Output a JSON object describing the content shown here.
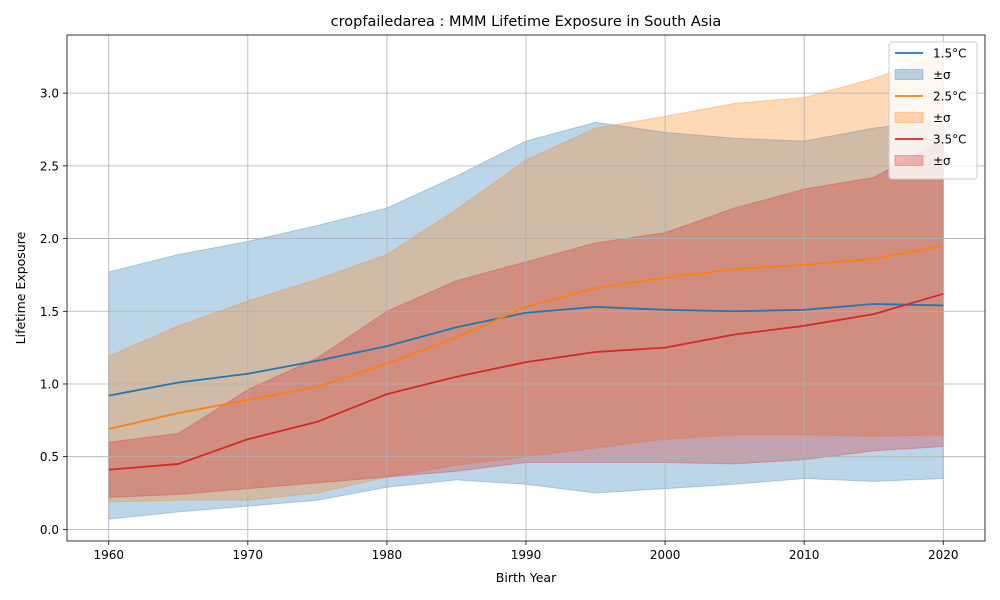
{
  "chart_data": {
    "type": "area",
    "title": "cropfailedarea : MMM Lifetime Exposure in South Asia",
    "xlabel": "Birth Year",
    "ylabel": "Lifetime Exposure",
    "xlim": [
      1957,
      2023
    ],
    "ylim": [
      -0.08,
      3.4
    ],
    "xticks": [
      1960,
      1970,
      1980,
      1990,
      2000,
      2010,
      2020
    ],
    "xtick_labels": [
      "1960",
      "1970",
      "1980",
      "1990",
      "2000",
      "2010",
      "2020"
    ],
    "yticks": [
      0.0,
      0.5,
      1.0,
      1.5,
      2.0,
      2.5,
      3.0
    ],
    "ytick_labels": [
      "0.0",
      "0.5",
      "1.0",
      "1.5",
      "2.0",
      "2.5",
      "3.0"
    ],
    "grid": true,
    "legend_position": "top-right",
    "x": [
      1960,
      1965,
      1970,
      1975,
      1980,
      1985,
      1990,
      1995,
      2000,
      2005,
      2010,
      2015,
      2020
    ],
    "series": [
      {
        "name": "1.5°C",
        "band_name": "±σ",
        "color": "#1f77b4",
        "mean": [
          0.92,
          1.01,
          1.07,
          1.16,
          1.26,
          1.39,
          1.49,
          1.53,
          1.51,
          1.5,
          1.51,
          1.55,
          1.54
        ],
        "upper": [
          1.77,
          1.89,
          1.98,
          2.09,
          2.21,
          2.43,
          2.67,
          2.8,
          2.73,
          2.69,
          2.67,
          2.76,
          2.82
        ],
        "lower": [
          0.07,
          0.12,
          0.16,
          0.2,
          0.29,
          0.34,
          0.31,
          0.25,
          0.28,
          0.31,
          0.35,
          0.33,
          0.35
        ]
      },
      {
        "name": "2.5°C",
        "band_name": "±σ",
        "color": "#ff7f0e",
        "mean": [
          0.69,
          0.8,
          0.89,
          0.98,
          1.14,
          1.32,
          1.53,
          1.66,
          1.73,
          1.79,
          1.82,
          1.86,
          1.95
        ],
        "upper": [
          1.19,
          1.4,
          1.57,
          1.72,
          1.89,
          2.2,
          2.54,
          2.76,
          2.84,
          2.93,
          2.97,
          3.1,
          3.28
        ],
        "lower": [
          0.19,
          0.2,
          0.2,
          0.25,
          0.36,
          0.44,
          0.5,
          0.56,
          0.62,
          0.65,
          0.65,
          0.64,
          0.65
        ]
      },
      {
        "name": "3.5°C",
        "band_name": "±σ",
        "color": "#d62728",
        "mean": [
          0.41,
          0.45,
          0.62,
          0.74,
          0.93,
          1.05,
          1.15,
          1.22,
          1.25,
          1.34,
          1.4,
          1.48,
          1.62
        ],
        "upper": [
          0.6,
          0.66,
          0.96,
          1.18,
          1.5,
          1.71,
          1.84,
          1.97,
          2.04,
          2.21,
          2.34,
          2.42,
          2.68
        ],
        "lower": [
          0.22,
          0.24,
          0.28,
          0.32,
          0.36,
          0.4,
          0.46,
          0.46,
          0.46,
          0.45,
          0.48,
          0.54,
          0.57
        ]
      }
    ]
  }
}
